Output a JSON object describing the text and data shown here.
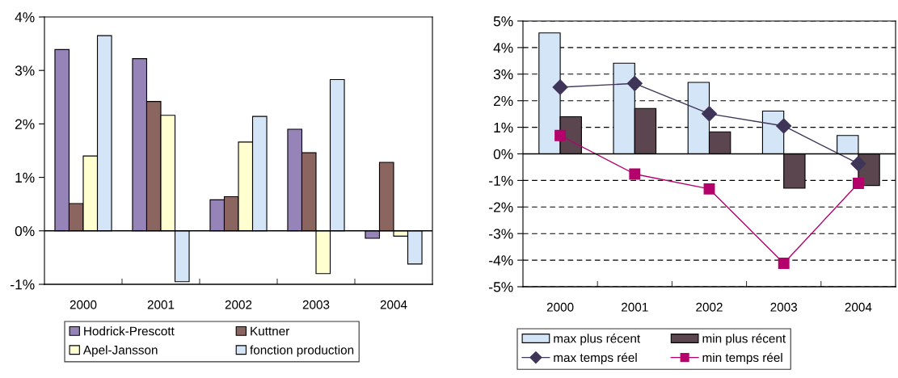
{
  "chart_data": [
    {
      "type": "bar",
      "categories": [
        "2000",
        "2001",
        "2002",
        "2003",
        "2004"
      ],
      "series": [
        {
          "name": "Hodrick-Prescott",
          "color": "#9683b8",
          "values": [
            3.39,
            3.22,
            0.58,
            1.9,
            -0.14
          ]
        },
        {
          "name": "Kuttner",
          "color": "#8b6560",
          "values": [
            0.51,
            2.42,
            0.64,
            1.46,
            1.28
          ]
        },
        {
          "name": "Apel-Jansson",
          "color": "#ffffd0",
          "values": [
            1.4,
            2.16,
            1.66,
            -0.8,
            -0.1
          ]
        },
        {
          "name": "fonction production",
          "color": "#d3e5f7",
          "values": [
            3.65,
            -0.95,
            2.14,
            2.83,
            -0.62
          ]
        }
      ],
      "ylim": [
        -1,
        4
      ],
      "yticks": [
        {
          "value": -1,
          "label": "-1%"
        },
        {
          "value": 0,
          "label": "0%"
        },
        {
          "value": 1,
          "label": "1%"
        },
        {
          "value": 2,
          "label": "2%"
        },
        {
          "value": 3,
          "label": "3%"
        },
        {
          "value": 4,
          "label": "4%"
        }
      ],
      "legend": "bottom"
    },
    {
      "type": "bar",
      "categories": [
        "2000",
        "2001",
        "2002",
        "2003",
        "2004"
      ],
      "series": [
        {
          "name": "max plus récent",
          "color": "#d3e5f7",
          "values": [
            4.55,
            3.41,
            2.69,
            1.61,
            0.69
          ]
        },
        {
          "name": "min plus récent",
          "color": "#5b4650",
          "values": [
            1.4,
            1.71,
            0.83,
            -1.29,
            -1.19
          ]
        },
        {
          "name": "max temps réel",
          "type": "line",
          "marker": "diamond",
          "color": "#3f3558",
          "values": [
            2.51,
            2.65,
            1.51,
            1.05,
            -0.37
          ]
        },
        {
          "name": "min temps réel",
          "type": "line",
          "marker": "square",
          "color": "#b5006b",
          "values": [
            0.69,
            -0.76,
            -1.32,
            -4.12,
            -1.11
          ]
        }
      ],
      "ylim": [
        -5,
        5
      ],
      "yticks": [
        {
          "value": -5,
          "label": "-5%"
        },
        {
          "value": -4,
          "label": "-4%"
        },
        {
          "value": -3,
          "label": "-3%"
        },
        {
          "value": -2,
          "label": "-2%"
        },
        {
          "value": -1,
          "label": "-1%"
        },
        {
          "value": 0,
          "label": "0%"
        },
        {
          "value": 1,
          "label": "1%"
        },
        {
          "value": 2,
          "label": "2%"
        },
        {
          "value": 3,
          "label": "3%"
        },
        {
          "value": 4,
          "label": "4%"
        },
        {
          "value": 5,
          "label": "5%"
        }
      ],
      "grid": "y",
      "line_style": "solid",
      "legend": "bottom"
    }
  ]
}
